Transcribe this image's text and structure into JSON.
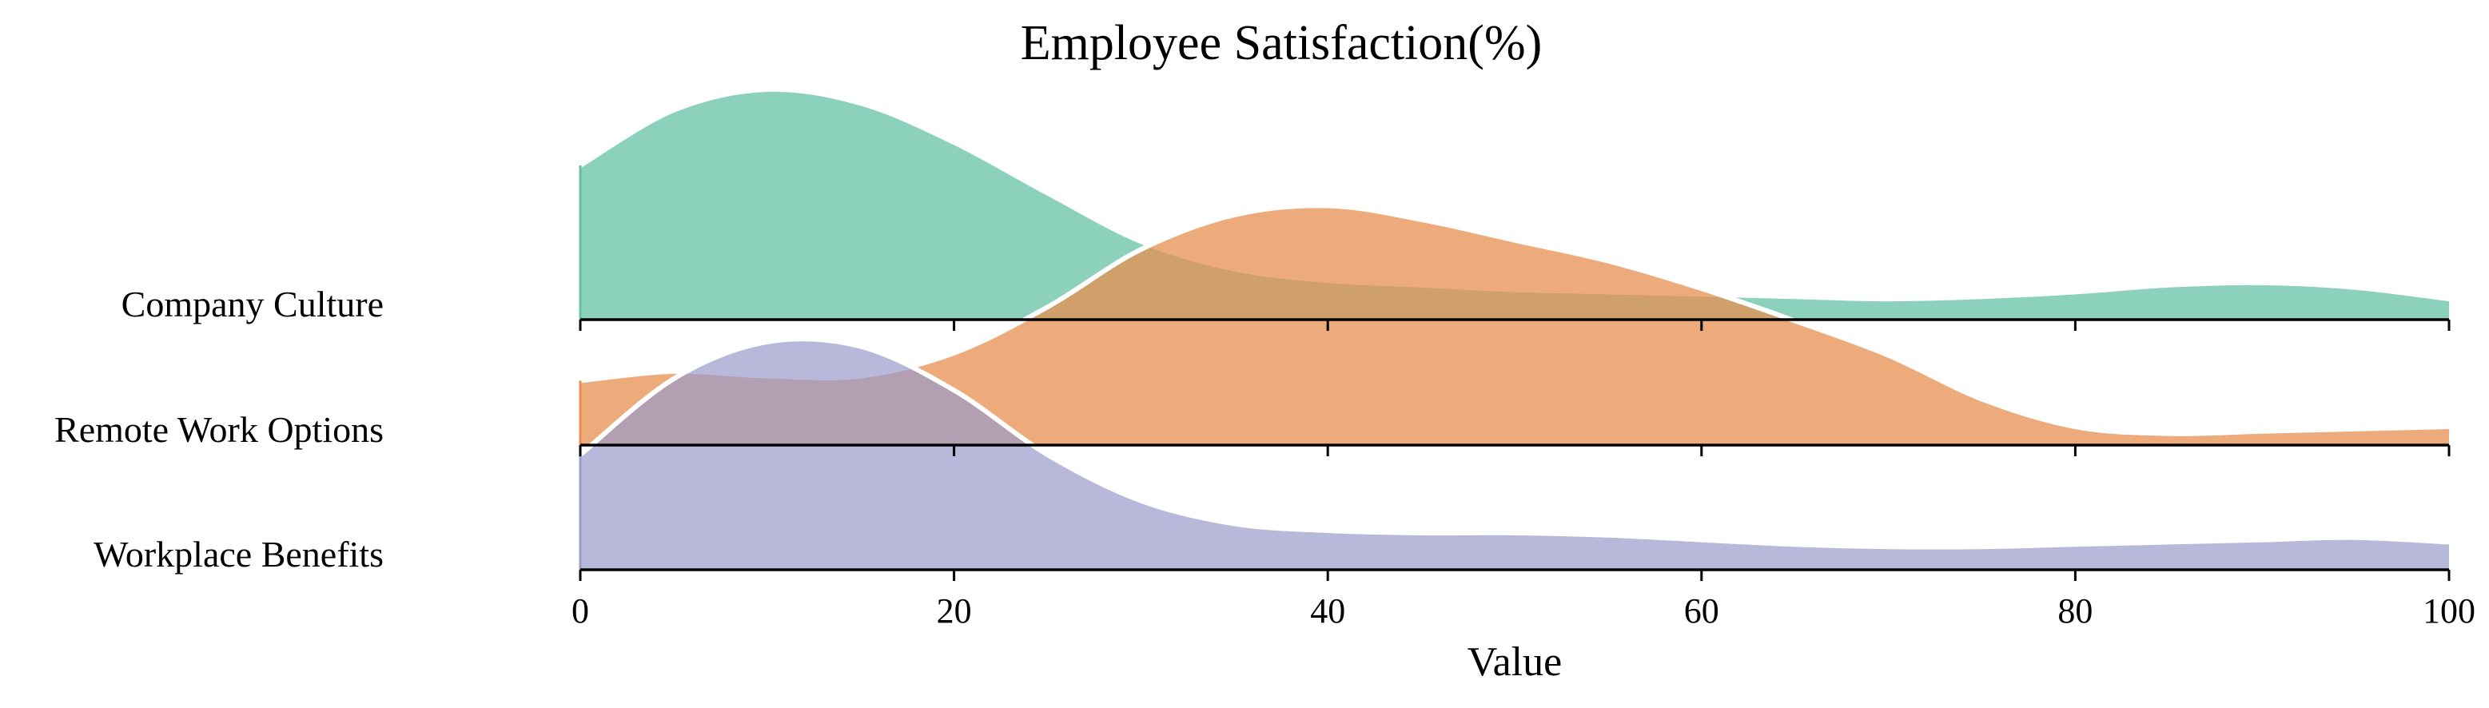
{
  "chart_data": {
    "type": "area",
    "subtype": "ridgeline",
    "title": "Employee Satisfaction(%)",
    "xlabel": "Value",
    "ylabel": "",
    "xlim": [
      0,
      100
    ],
    "x_ticks": [
      0,
      20,
      40,
      60,
      80,
      100
    ],
    "grid": false,
    "legend": "none",
    "x": [
      0,
      5,
      10,
      15,
      20,
      25,
      30,
      35,
      40,
      45,
      50,
      55,
      60,
      65,
      70,
      75,
      80,
      85,
      90,
      95,
      100
    ],
    "series": [
      {
        "name": "Company Culture",
        "color": "#66c2a5",
        "values": [
          0.67,
          0.91,
          1.0,
          0.94,
          0.77,
          0.55,
          0.34,
          0.22,
          0.17,
          0.15,
          0.13,
          0.12,
          0.11,
          0.1,
          0.09,
          0.1,
          0.12,
          0.15,
          0.16,
          0.14,
          0.09
        ]
      },
      {
        "name": "Remote Work Options",
        "color": "#e78f4f",
        "values": [
          0.28,
          0.32,
          0.3,
          0.3,
          0.4,
          0.6,
          0.85,
          1.0,
          1.04,
          0.98,
          0.89,
          0.8,
          0.68,
          0.54,
          0.39,
          0.2,
          0.08,
          0.05,
          0.06,
          0.07,
          0.08
        ]
      },
      {
        "name": "Workplace Benefits",
        "color": "#9a9acb",
        "values": [
          0.5,
          0.83,
          0.99,
          0.97,
          0.78,
          0.5,
          0.3,
          0.2,
          0.17,
          0.16,
          0.16,
          0.15,
          0.13,
          0.11,
          0.1,
          0.1,
          0.11,
          0.12,
          0.13,
          0.14,
          0.12
        ]
      }
    ]
  }
}
